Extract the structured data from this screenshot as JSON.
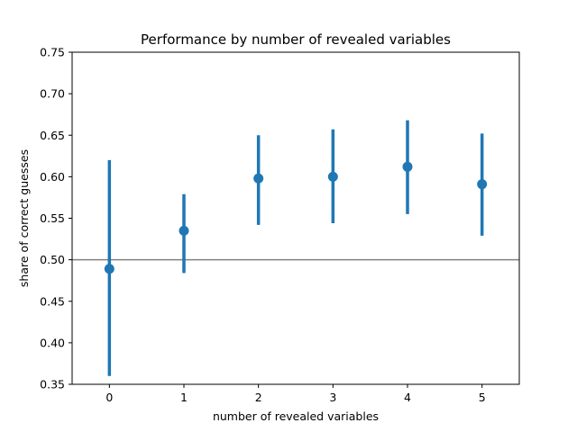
{
  "chart_data": {
    "type": "pointplot",
    "title": "Performance by number of revealed variables",
    "xlabel": "number of revealed variables",
    "ylabel": "share of correct guesses",
    "categories": [
      "0",
      "1",
      "2",
      "3",
      "4",
      "5"
    ],
    "series": [
      {
        "values": [
          0.489,
          0.535,
          0.598,
          0.6,
          0.612,
          0.591
        ],
        "ci_low": [
          0.36,
          0.484,
          0.542,
          0.544,
          0.555,
          0.529
        ],
        "ci_high": [
          0.62,
          0.579,
          0.65,
          0.657,
          0.668,
          0.652
        ],
        "color": "#1f77b4"
      }
    ],
    "reference_line": {
      "y": 0.5,
      "color": "#808080"
    },
    "ylim": [
      0.35,
      0.75
    ],
    "yticks": [
      "0.35",
      "0.40",
      "0.45",
      "0.50",
      "0.55",
      "0.60",
      "0.65",
      "0.70",
      "0.75"
    ],
    "grid": false,
    "legend": "none"
  }
}
